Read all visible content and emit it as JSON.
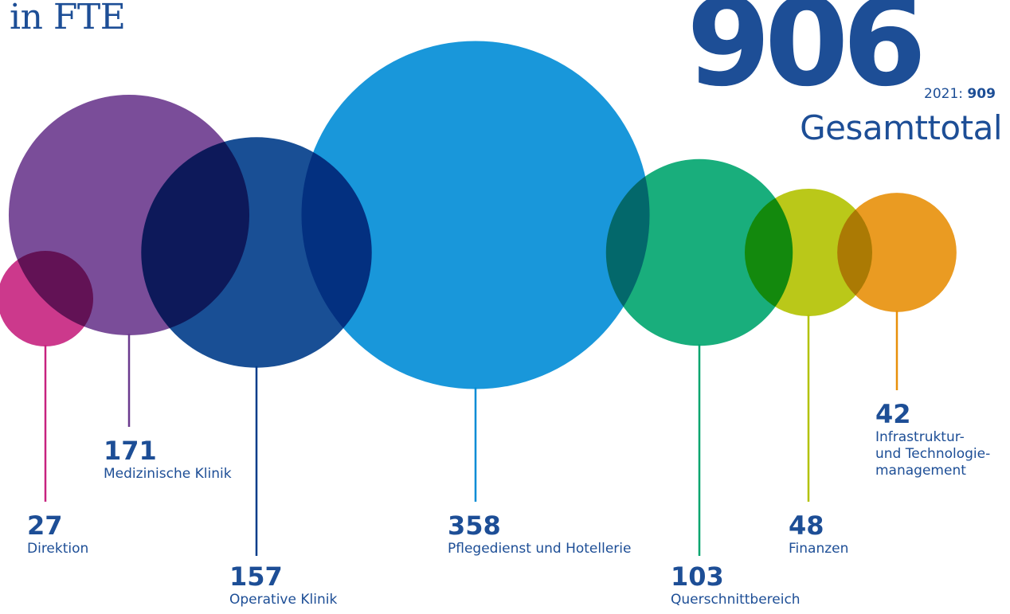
{
  "header": {
    "unit": "in FTE",
    "total_value": "906",
    "previous_year_label": "2021:",
    "previous_year_value": "909",
    "total_label": "Gesamttotal"
  },
  "chart_data": {
    "type": "bubble",
    "unit": "FTE",
    "total": 906,
    "previous_year": {
      "year": 2021,
      "total": 909
    },
    "series": [
      {
        "name": "Direktion",
        "value": 27,
        "color": "#c7237f"
      },
      {
        "name": "Medizinische Klinik",
        "value": 171,
        "color": "#6b3a8e"
      },
      {
        "name": "Operative Klinik",
        "value": 157,
        "color": "#003c8a"
      },
      {
        "name": "Pflegedienst und Hotellerie",
        "value": 358,
        "color": "#008cd6"
      },
      {
        "name": "Querschnittbereich",
        "value": 103,
        "color": "#00a56e"
      },
      {
        "name": "Finanzen",
        "value": 48,
        "color": "#b3c200"
      },
      {
        "name": "Infrastruktur-\nund Technologie-\nmanagement",
        "value": 42,
        "color": "#e8900a"
      }
    ]
  }
}
